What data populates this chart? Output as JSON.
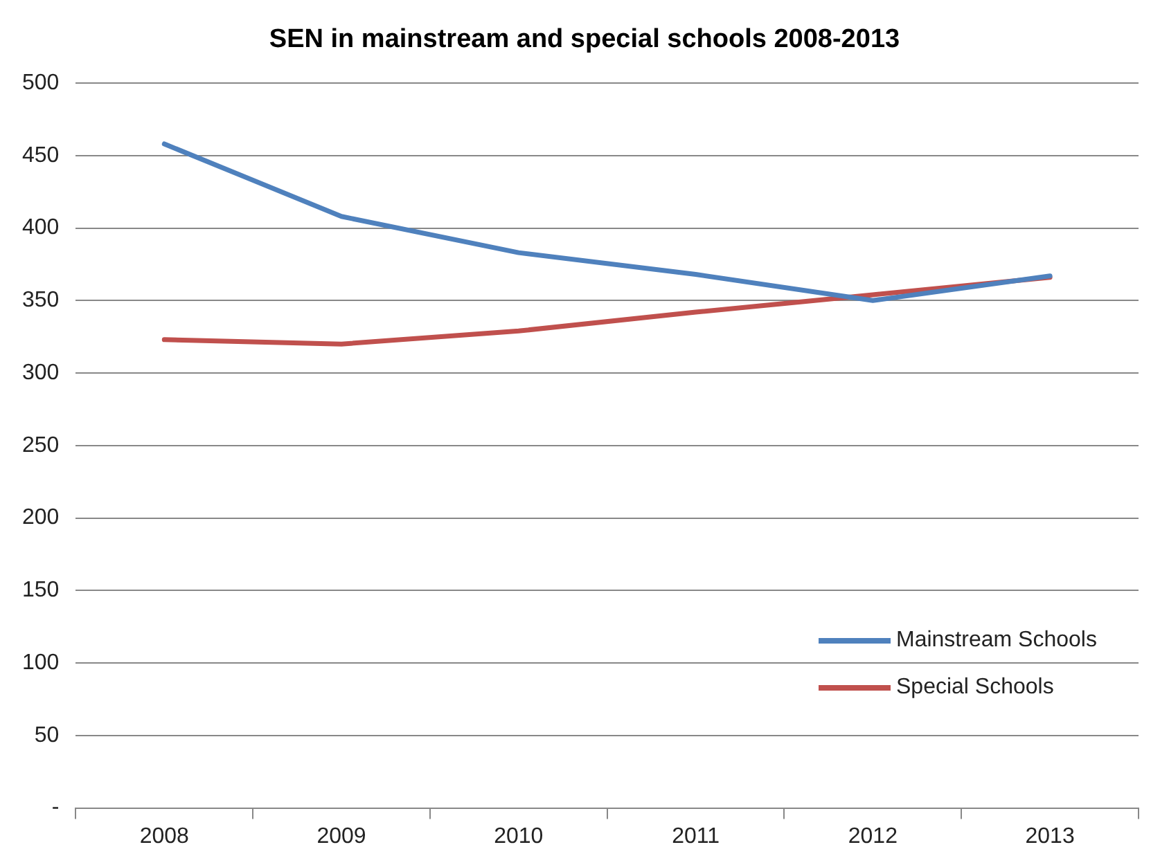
{
  "chart_data": {
    "type": "line",
    "title": "SEN in mainstream and special schools 2008-2013",
    "categories": [
      "2008",
      "2009",
      "2010",
      "2011",
      "2012",
      "2013"
    ],
    "series": [
      {
        "name": "Mainstream Schools",
        "color": "#4f81bd",
        "values": [
          458,
          408,
          383,
          368,
          350,
          367
        ]
      },
      {
        "name": "Special Schools",
        "color": "#c0504d",
        "values": [
          323,
          320,
          329,
          342,
          354,
          366
        ]
      }
    ],
    "ylim": [
      0,
      500
    ],
    "yticks": [
      {
        "value": 0,
        "label": "-"
      },
      50,
      100,
      150,
      200,
      250,
      300,
      350,
      400,
      450,
      500
    ],
    "grid": "y",
    "legend": "bottom right",
    "marker": "none",
    "line_style": "solid"
  }
}
